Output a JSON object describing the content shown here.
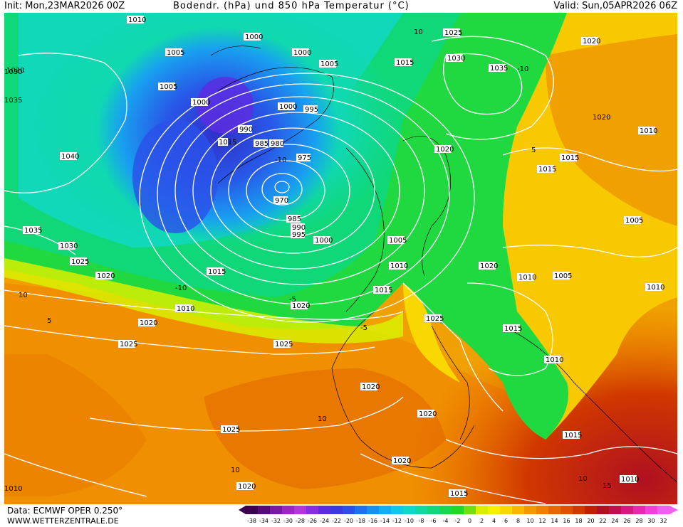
{
  "header": {
    "init": "Init: Mon,23MAR2026 00Z",
    "title": "Bodendr. (hPa) und 850 hPa Temperatur (°C)",
    "valid": "Valid: Sun,05APR2026 06Z"
  },
  "footer": {
    "source": "Data: ECMWF OPER 0.250°",
    "website": "WWW.WETTERZENTRALE.DE"
  },
  "colorbar": {
    "ticks": [
      "-38",
      "-34",
      "-32",
      "-30",
      "-28",
      "-26",
      "-24",
      "-22",
      "-20",
      "-18",
      "-16",
      "-14",
      "-12",
      "-10",
      "-8",
      "-6",
      "-4",
      "-2",
      "0",
      "2",
      "4",
      "6",
      "8",
      "10",
      "12",
      "14",
      "16",
      "18",
      "20",
      "22",
      "24",
      "26",
      "28",
      "30",
      "32"
    ],
    "colors": [
      "#3d0050",
      "#5a0a78",
      "#7a1aa0",
      "#9a28c0",
      "#b038d8",
      "#8a2ce0",
      "#5a2ee0",
      "#3a3ae0",
      "#2a50e8",
      "#2070f0",
      "#1890f0",
      "#10b0f0",
      "#10c8e8",
      "#10d8c8",
      "#10d8a0",
      "#10d878",
      "#18d850",
      "#20d828",
      "#70e010",
      "#d8f000",
      "#f8f000",
      "#f8d800",
      "#f8b800",
      "#f09a00",
      "#f08000",
      "#e86800",
      "#e05000",
      "#d03800",
      "#c02000",
      "#b01020",
      "#c01050",
      "#d81880",
      "#e828b0",
      "#f040d8",
      "#f060f0"
    ]
  },
  "map": {
    "isobar_labels": [
      "1010",
      "1005",
      "1000",
      "1000",
      "1005",
      "1015",
      "1025",
      "1030",
      "1035",
      "1020",
      "1005",
      "1000",
      "1000",
      "995",
      "990",
      "985",
      "980",
      "975",
      "970",
      "985",
      "990",
      "995",
      "1000",
      "1005",
      "1010",
      "1015",
      "1020",
      "1025",
      "1020",
      "1015",
      "1010",
      "1005",
      "1040",
      "1035",
      "1030",
      "1025",
      "1020",
      "1015",
      "1010",
      "1020",
      "1025",
      "1020",
      "1025",
      "1020",
      "1020",
      "1020",
      "1015",
      "1010",
      "1005",
      "1010",
      "1015",
      "1010",
      "1020",
      "1025",
      "1015",
      "1020",
      "1015",
      "1010",
      "1020",
      "1030",
      "1035",
      "1010",
      "1015"
    ],
    "low_center_label": "970"
  }
}
